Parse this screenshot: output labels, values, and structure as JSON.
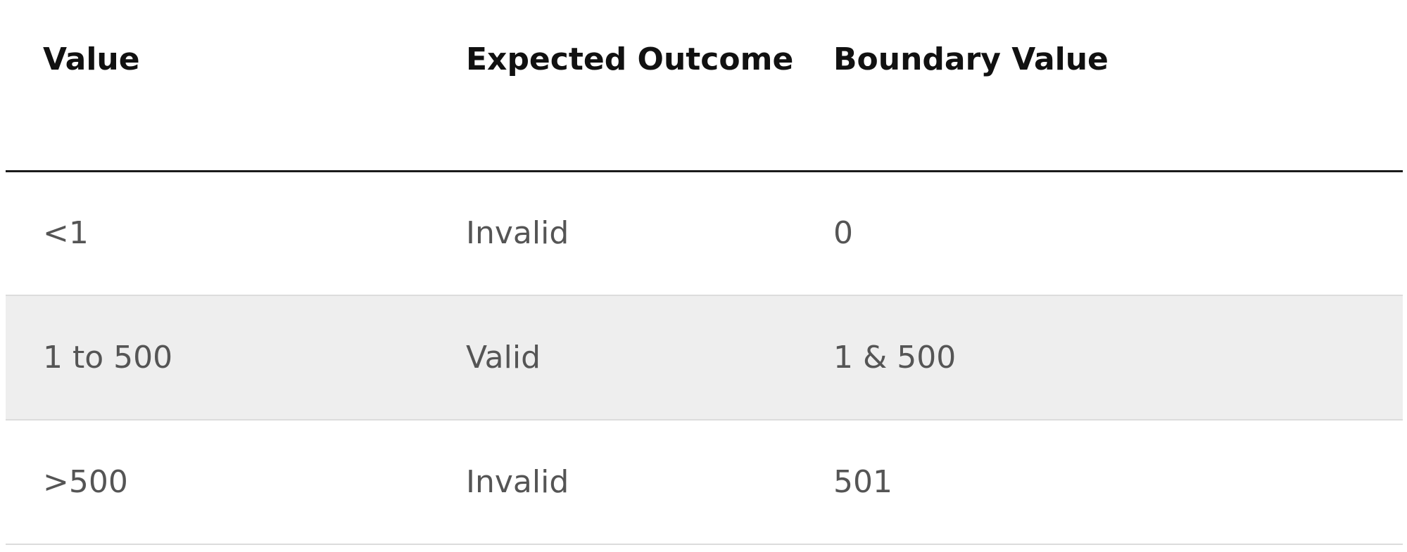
{
  "table": {
    "headers": [
      "Value",
      "Expected Outcome",
      "Boundary Value"
    ],
    "rows": [
      [
        "<1",
        "Invalid",
        "0"
      ],
      [
        "1 to 500",
        "Valid",
        "1 & 500"
      ],
      [
        ">500",
        "Invalid",
        "501"
      ]
    ]
  }
}
